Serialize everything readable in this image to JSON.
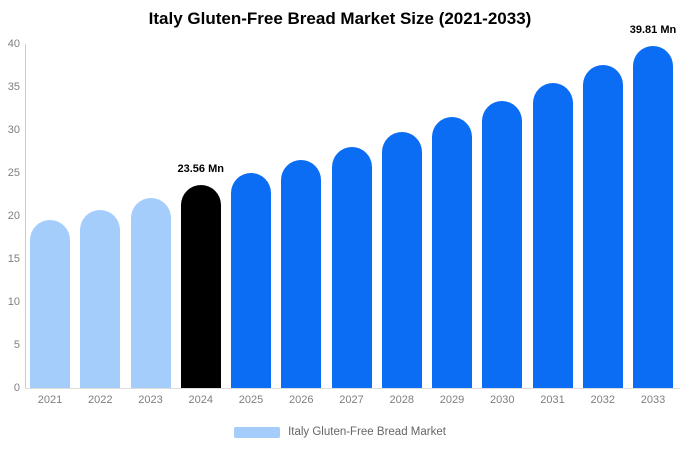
{
  "title": "Italy Gluten-Free Bread Market Size (2021-2033)",
  "legend": {
    "label": "Italy Gluten-Free Bread Market"
  },
  "colors": {
    "historical": "#a4cdfb",
    "highlight": "#000000",
    "forecast": "#0b6cf4",
    "axis_text": "#7f7f7f",
    "legend_text": "#666666",
    "y_axis_line": "#cccccc",
    "x_axis_line": "#dddddd",
    "background": "#ffffff"
  },
  "chart_data": {
    "type": "bar",
    "title": "Italy Gluten-Free Bread Market Size (2021-2033)",
    "categories": [
      "2021",
      "2022",
      "2023",
      "2024",
      "2025",
      "2026",
      "2027",
      "2028",
      "2029",
      "2030",
      "2031",
      "2032",
      "2033"
    ],
    "values": [
      19.5,
      20.7,
      22.1,
      23.56,
      24.97,
      26.47,
      28.06,
      29.74,
      31.53,
      33.42,
      35.42,
      37.55,
      39.81
    ],
    "bar_roles": [
      "historical",
      "historical",
      "historical",
      "highlight",
      "forecast",
      "forecast",
      "forecast",
      "forecast",
      "forecast",
      "forecast",
      "forecast",
      "forecast",
      "forecast"
    ],
    "data_labels": [
      {
        "index": 3,
        "text": "23.56 Mn"
      },
      {
        "index": 12,
        "text": "39.81 Mn"
      }
    ],
    "xlabel": "",
    "ylabel": "",
    "ylim": [
      0,
      40
    ],
    "yticks": [
      0,
      5,
      10,
      15,
      20,
      25,
      30,
      35,
      40
    ],
    "grid": false,
    "legend_entries": [
      "Italy Gluten-Free Bread Market"
    ],
    "legend_position": "bottom"
  }
}
